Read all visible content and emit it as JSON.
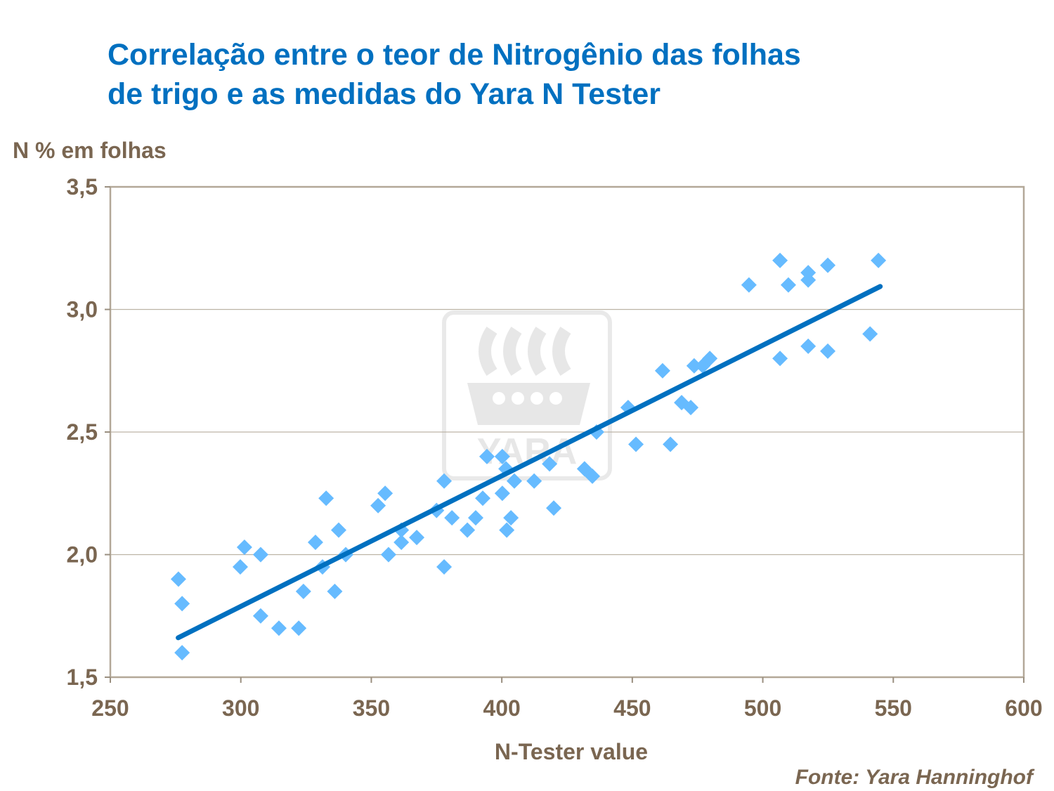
{
  "chart_data": {
    "type": "scatter",
    "title": "Correlação entre o teor de Nitrogênio das folhas\nde trigo e as medidas do Yara N Tester",
    "xlabel": "N-Tester value",
    "ylabel": "N % em folhas",
    "source": "Fonte: Yara Hanninghof",
    "xlim": [
      250,
      600
    ],
    "ylim": [
      1.5,
      3.5
    ],
    "x_ticks": [
      "250",
      "300",
      "350",
      "400",
      "450",
      "500",
      "550",
      "600"
    ],
    "y_ticks": [
      "1,5",
      "2,0",
      "2,5",
      "3,0",
      "3,5"
    ],
    "grid": "horizontal",
    "watermark_logo_text": "YARA",
    "colors": {
      "points": "#66BBFF",
      "trendline": "#0070C0",
      "title": "#0070C0",
      "axis_text": "#7A6651",
      "grid": "#BDB4A6"
    },
    "points": [
      [
        276.1,
        1.9
      ],
      [
        277.5,
        1.8
      ],
      [
        277.5,
        1.6
      ],
      [
        299.8,
        1.95
      ],
      [
        301.4,
        2.03
      ],
      [
        307.6,
        2.0
      ],
      [
        307.6,
        1.75
      ],
      [
        314.6,
        1.7
      ],
      [
        322.2,
        1.7
      ],
      [
        324.0,
        1.85
      ],
      [
        328.6,
        2.05
      ],
      [
        331.3,
        1.95
      ],
      [
        332.7,
        2.23
      ],
      [
        336.0,
        1.85
      ],
      [
        337.5,
        2.1
      ],
      [
        340.2,
        2.0
      ],
      [
        352.6,
        2.2
      ],
      [
        355.3,
        2.25
      ],
      [
        356.6,
        2.0
      ],
      [
        361.5,
        2.1
      ],
      [
        361.5,
        2.05
      ],
      [
        367.4,
        2.07
      ],
      [
        375.0,
        2.18
      ],
      [
        377.9,
        2.3
      ],
      [
        377.9,
        1.95
      ],
      [
        380.9,
        2.15
      ],
      [
        386.8,
        2.1
      ],
      [
        390.0,
        2.15
      ],
      [
        392.7,
        2.23
      ],
      [
        394.3,
        2.4
      ],
      [
        400.2,
        2.4
      ],
      [
        400.2,
        2.25
      ],
      [
        401.6,
        2.35
      ],
      [
        401.9,
        2.1
      ],
      [
        403.5,
        2.15
      ],
      [
        404.8,
        2.3
      ],
      [
        412.4,
        2.3
      ],
      [
        418.3,
        2.37
      ],
      [
        419.9,
        2.19
      ],
      [
        431.7,
        2.35
      ],
      [
        434.7,
        2.32
      ],
      [
        436.3,
        2.5
      ],
      [
        448.4,
        2.6
      ],
      [
        451.4,
        2.45
      ],
      [
        461.6,
        2.75
      ],
      [
        464.6,
        2.45
      ],
      [
        468.9,
        2.62
      ],
      [
        472.4,
        2.6
      ],
      [
        473.7,
        2.77
      ],
      [
        477.0,
        2.77
      ],
      [
        479.7,
        2.8
      ],
      [
        494.7,
        3.1
      ],
      [
        506.6,
        3.2
      ],
      [
        506.6,
        2.8
      ],
      [
        509.8,
        3.1
      ],
      [
        517.4,
        3.15
      ],
      [
        517.4,
        3.12
      ],
      [
        517.4,
        2.85
      ],
      [
        524.9,
        3.18
      ],
      [
        524.9,
        2.83
      ],
      [
        541.1,
        2.9
      ],
      [
        544.3,
        3.2
      ]
    ],
    "trendline": {
      "type": "linear",
      "x_range": [
        276,
        545
      ],
      "slope": 0.005326,
      "intercept": 0.191
    }
  }
}
